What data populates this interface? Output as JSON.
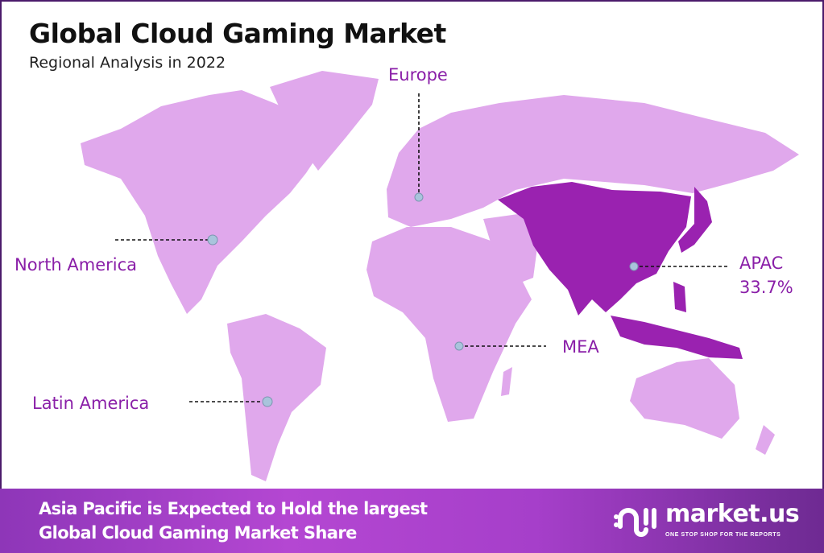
{
  "header": {
    "title": "Global Cloud Gaming Market",
    "subtitle": "Regional Analysis in 2022"
  },
  "map": {
    "colors": {
      "default_region": "#e0a8ec",
      "highlight_region": "#9a22b0",
      "label": "#8a1fa8",
      "marker": "#a9c4dc"
    },
    "highlighted_region": "APAC",
    "regions": [
      {
        "name": "Europe"
      },
      {
        "name": "North America"
      },
      {
        "name": "APAC",
        "value": "33.7%"
      },
      {
        "name": "MEA"
      },
      {
        "name": "Latin America"
      }
    ]
  },
  "banner": {
    "line1": "Asia Pacific is Expected to Hold the largest",
    "line2": "Global Cloud Gaming Market Share",
    "logo_name": "market.us",
    "logo_tagline": "ONE STOP SHOP FOR THE REPORTS"
  }
}
